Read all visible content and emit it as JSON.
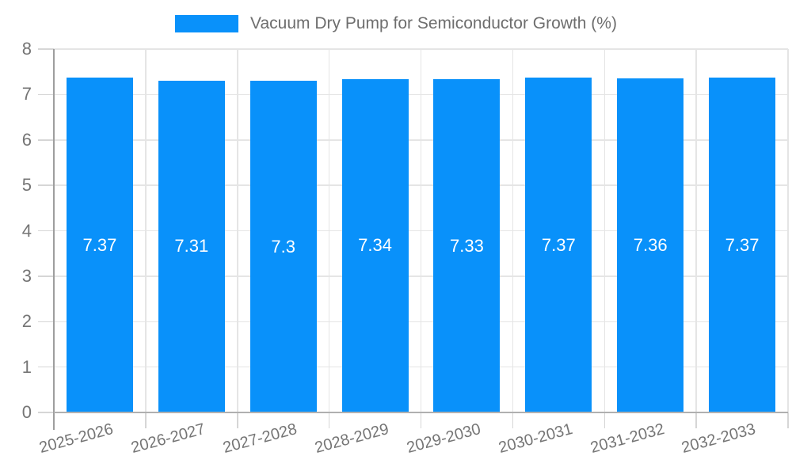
{
  "legend": {
    "label": "Vacuum Dry Pump for Semiconductor Growth (%)"
  },
  "chart_data": {
    "type": "bar",
    "title": "Vacuum Dry Pump for Semiconductor Growth (%)",
    "categories": [
      "2025-2026",
      "2026-2027",
      "2027-2028",
      "2028-2029",
      "2029-2030",
      "2030-2031",
      "2031-2032",
      "2032-2033"
    ],
    "series": [
      {
        "name": "Vacuum Dry Pump for Semiconductor Growth (%)",
        "values": [
          7.37,
          7.31,
          7.3,
          7.34,
          7.33,
          7.37,
          7.36,
          7.37
        ]
      }
    ],
    "value_labels": [
      "7.37",
      "7.31",
      "7.3",
      "7.34",
      "7.33",
      "7.37",
      "7.36",
      "7.37"
    ],
    "xlabel": "",
    "ylabel": "",
    "ylim": [
      0,
      8
    ],
    "yticks": [
      0,
      1,
      2,
      3,
      4,
      5,
      6,
      7,
      8
    ],
    "grid": true,
    "legend_position": "top",
    "colors": {
      "bar": "#0991fa",
      "grid": "#e5e5e5",
      "baseline": "#b0b0b0",
      "axis": "#9e9e9e",
      "tick": "#d6d6d6",
      "tick_label": "#757575",
      "title": "#6e6e6e",
      "value_label": "#ffffff"
    }
  }
}
